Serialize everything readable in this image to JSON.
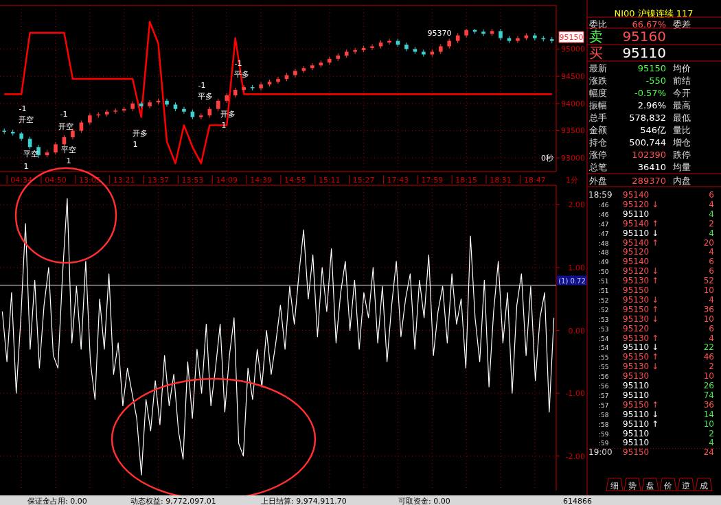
{
  "chart_data": [
    {
      "type": "candlestick",
      "categories": [
        null,
        null,
        "04:34",
        null,
        null,
        null,
        "04:50",
        null,
        null,
        null,
        "13:05",
        null,
        null,
        null,
        "13:21",
        null,
        null,
        null,
        "13:37",
        null,
        null,
        null,
        "13:53",
        null,
        null,
        null,
        "14:09",
        null,
        null,
        null,
        "14:39",
        null,
        null,
        null,
        "14:55",
        null,
        null,
        null,
        "15:11",
        null,
        null,
        null,
        "15:27",
        null,
        null,
        null,
        "17:43",
        null,
        null,
        null,
        "17:59",
        null,
        null,
        null,
        "18:15",
        null,
        null,
        null,
        "18:31",
        null,
        null,
        null,
        "18:47",
        null,
        null
      ],
      "ohlc": [
        [
          93500,
          93540,
          93440,
          93480
        ],
        [
          93480,
          93520,
          93410,
          93450
        ],
        [
          93450,
          93480,
          93310,
          93350
        ],
        [
          93350,
          93390,
          93160,
          93200
        ],
        [
          93200,
          93240,
          93000,
          93050
        ],
        [
          93050,
          93150,
          93010,
          93100
        ],
        [
          93100,
          93290,
          93060,
          93250
        ],
        [
          93250,
          93420,
          93210,
          93380
        ],
        [
          93380,
          93540,
          93340,
          93500
        ],
        [
          93500,
          93690,
          93460,
          93650
        ],
        [
          93650,
          93820,
          93610,
          93780
        ],
        [
          93780,
          93840,
          93740,
          93800
        ],
        [
          93800,
          93890,
          93760,
          93850
        ],
        [
          93850,
          93910,
          93810,
          93870
        ],
        [
          93870,
          93940,
          93830,
          93900
        ],
        [
          93900,
          94040,
          93860,
          94000
        ],
        [
          94000,
          94040,
          93910,
          93950
        ],
        [
          93950,
          94060,
          93910,
          94020
        ],
        [
          94020,
          94090,
          93980,
          94050
        ],
        [
          94050,
          94090,
          93940,
          93980
        ],
        [
          93980,
          94020,
          93860,
          93900
        ],
        [
          93900,
          93940,
          93810,
          93850
        ],
        [
          93850,
          93890,
          93710,
          93750
        ],
        [
          93750,
          93820,
          93710,
          93780
        ],
        [
          93780,
          93940,
          93740,
          93900
        ],
        [
          93900,
          94090,
          93860,
          94050
        ],
        [
          94050,
          94190,
          94010,
          94150
        ],
        [
          94150,
          94290,
          94110,
          94250
        ],
        [
          94250,
          94340,
          94210,
          94300
        ],
        [
          94300,
          94340,
          94240,
          94280
        ],
        [
          94280,
          94390,
          94240,
          94350
        ],
        [
          94350,
          94440,
          94310,
          94400
        ],
        [
          94400,
          94490,
          94360,
          94450
        ],
        [
          94450,
          94560,
          94410,
          94520
        ],
        [
          94520,
          94640,
          94480,
          94600
        ],
        [
          94600,
          94690,
          94560,
          94650
        ],
        [
          94650,
          94740,
          94610,
          94700
        ],
        [
          94700,
          94790,
          94660,
          94750
        ],
        [
          94750,
          94860,
          94710,
          94820
        ],
        [
          94820,
          94920,
          94780,
          94880
        ],
        [
          94880,
          94990,
          94840,
          94950
        ],
        [
          94950,
          95020,
          94910,
          94980
        ],
        [
          94980,
          95060,
          94940,
          95020
        ],
        [
          95020,
          95090,
          94980,
          95050
        ],
        [
          95050,
          95160,
          95010,
          95120
        ],
        [
          95120,
          95190,
          95080,
          95150
        ],
        [
          95150,
          95190,
          95040,
          95080
        ],
        [
          95080,
          95120,
          94960,
          95000
        ],
        [
          95000,
          95040,
          94910,
          94950
        ],
        [
          94950,
          94990,
          94860,
          94900
        ],
        [
          94900,
          94990,
          94860,
          94950
        ],
        [
          94950,
          95090,
          94910,
          95050
        ],
        [
          95050,
          95190,
          95010,
          95150
        ],
        [
          95150,
          95290,
          95110,
          95250
        ],
        [
          95250,
          95370,
          95210,
          95350
        ],
        [
          95350,
          95370,
          95280,
          95320
        ],
        [
          95320,
          95360,
          95240,
          95280
        ],
        [
          95280,
          95370,
          95240,
          95330
        ],
        [
          95330,
          95370,
          95160,
          95200
        ],
        [
          95200,
          95240,
          95110,
          95150
        ],
        [
          95150,
          95240,
          95110,
          95200
        ],
        [
          95200,
          95290,
          95160,
          95250
        ],
        [
          95250,
          95290,
          95160,
          95200
        ],
        [
          95200,
          95240,
          95140,
          95180
        ],
        [
          95180,
          95220,
          95110,
          95150
        ]
      ],
      "colors": [
        "#3cd2d2",
        "#3cd2d2",
        "#3cd2d2",
        "#3cd2d2",
        "#3cd2d2",
        "#ff4040",
        "#ff4040",
        "#ff4040",
        "#ff4040",
        "#ff4040",
        "#ff4040",
        "#ff4040",
        "#ff4040",
        "#ff4040",
        "#ff4040",
        "#ff4040",
        "#3cd2d2",
        "#ff4040",
        "#ff4040",
        "#3cd2d2",
        "#3cd2d2",
        "#3cd2d2",
        "#3cd2d2",
        "#ff4040",
        "#ff4040",
        "#ff4040",
        "#ff4040",
        "#ff4040",
        "#ff4040",
        "#3cd2d2",
        "#ff4040",
        "#ff4040",
        "#ff4040",
        "#ff4040",
        "#ff4040",
        "#ff4040",
        "#ff4040",
        "#ff4040",
        "#ff4040",
        "#ff4040",
        "#ff4040",
        "#ff4040",
        "#ff4040",
        "#ff4040",
        "#ff4040",
        "#ff4040",
        "#3cd2d2",
        "#3cd2d2",
        "#3cd2d2",
        "#3cd2d2",
        "#ff4040",
        "#ff4040",
        "#ff4040",
        "#ff4040",
        "#ff4040",
        "#3cd2d2",
        "#3cd2d2",
        "#ff4040",
        "#3cd2d2",
        "#3cd2d2",
        "#ff4040",
        "#ff4040",
        "#3cd2d2",
        "#3cd2d2",
        "#3cd2d2"
      ],
      "series": [
        {
          "type": "line",
          "color": "#ff0000",
          "values": [
            94170,
            94170,
            94170,
            95300,
            95300,
            95300,
            95300,
            95300,
            94450,
            94450,
            94450,
            94450,
            94450,
            94450,
            94450,
            94450,
            93750,
            95500,
            95100,
            93300,
            92900,
            93600,
            93200,
            92900,
            93600,
            93600,
            93600,
            95200,
            94170,
            94170,
            94170,
            94170,
            94170,
            94170,
            94170,
            94170,
            94170,
            94170,
            94170,
            94170,
            94170,
            94170,
            94170,
            94170,
            94170,
            94170,
            94170,
            94170,
            94170,
            94170,
            94170,
            94170,
            94170,
            94170,
            94170,
            94170,
            94170,
            94170,
            94170,
            94170,
            94170,
            94170,
            94170,
            94170,
            94170
          ]
        }
      ],
      "ylim": [
        92750,
        95800
      ],
      "yticks": [
        93000,
        93500,
        94000,
        94500,
        95000
      ],
      "grid": true,
      "annotations": [
        "-1",
        "开空",
        "平空",
        "1",
        "-1",
        "开空",
        "平空",
        "1",
        "开多",
        "1",
        "-1",
        "平多",
        "开多",
        "1",
        "-1",
        "平多",
        "95370",
        "0秒",
        "1分",
        "95150"
      ]
    },
    {
      "type": "line",
      "categories": [
        null,
        null,
        null,
        null,
        null,
        null,
        null,
        null,
        null,
        null,
        null,
        null,
        null,
        null,
        null,
        null,
        null,
        null,
        null,
        null,
        null,
        null,
        null,
        null,
        null,
        null,
        null,
        null,
        null,
        null,
        null,
        null,
        null,
        null,
        null,
        null,
        null,
        null,
        null,
        null,
        null,
        null,
        null,
        null,
        null,
        null,
        null,
        null,
        null,
        null,
        null,
        null,
        null,
        null,
        null,
        null,
        null,
        null,
        null,
        null,
        null,
        null,
        null,
        null,
        null,
        null,
        null,
        null,
        null,
        null,
        null,
        null,
        null,
        null,
        null,
        null,
        null,
        null,
        null,
        null,
        null,
        null,
        null,
        null,
        null,
        null,
        null,
        null,
        null,
        null,
        null,
        null,
        null,
        null,
        null,
        null,
        null,
        null,
        null,
        null,
        null,
        null,
        null,
        null,
        null,
        null,
        null,
        null,
        null,
        null,
        null,
        null,
        null,
        null,
        null,
        null,
        null,
        null,
        null,
        null
      ],
      "series": [
        {
          "color": "#ffffff",
          "values": [
            0.3,
            -0.5,
            0.6,
            -1.0,
            0.2,
            1.7,
            -0.3,
            0.8,
            -0.6,
            0.4,
            1.0,
            -0.4,
            -0.6,
            0.9,
            2.1,
            -0.2,
            0.7,
            -0.3,
            1.1,
            -0.5,
            -1.1,
            0.5,
            -0.3,
            0.9,
            -0.7,
            -0.2,
            -1.2,
            -0.6,
            -1.0,
            -1.4,
            -2.3,
            -1.1,
            -1.6,
            -0.8,
            -1.5,
            -0.4,
            -1.2,
            -0.7,
            -1.6,
            -2.05,
            -0.5,
            -1.4,
            -0.3,
            -1.0,
            0.1,
            -1.2,
            -0.6,
            0.1,
            -1.3,
            -0.4,
            0.2,
            -1.8,
            -2.0,
            -0.6,
            -1.1,
            -0.3,
            -0.9,
            0.0,
            -0.7,
            -0.2,
            0.4,
            -0.3,
            0.7,
            0.1,
            0.9,
            1.6,
            0.5,
            1.2,
            -0.1,
            1.0,
            0.3,
            1.3,
            -0.2,
            0.6,
            1.1,
            0.0,
            0.8,
            -0.3,
            0.6,
            0.2,
            1.0,
            -0.2,
            0.7,
            -0.5,
            0.4,
            1.1,
            -0.1,
            0.5,
            0.9,
            -0.3,
            0.8,
            0.2,
            1.2,
            -0.4,
            0.3,
            0.7,
            -0.2,
            0.9,
            0.1,
            0.5,
            -0.6,
            1.5,
            0.2,
            -0.5,
            0.8,
            -0.9,
            0.3,
            1.1,
            -0.2,
            0.6,
            -1.0,
            0.4,
            0.9,
            -0.4,
            0.7,
            -0.8,
            0.2,
            0.6,
            -1.3,
            0.2
          ]
        }
      ],
      "ylim": [
        -2.55,
        2.31
      ],
      "yticks": [
        {
          "value": -2,
          "label": "-2.00"
        },
        {
          "value": -1,
          "label": "-1.00"
        },
        {
          "value": 0,
          "label": "0.00"
        },
        {
          "value": 1,
          "label": "1.00"
        },
        {
          "value": 2,
          "label": "2.00"
        }
      ],
      "grid": true,
      "ref_lines": [
        {
          "axis": "y",
          "value": 0.72,
          "label": "(1) 0.72",
          "color": "#ffffff"
        }
      ]
    },
    {
      "type": "other",
      "title": "NI00 沪镍连续 117",
      "categories": [
        "委比",
        "卖",
        "买",
        "最新",
        "涨跌",
        "幅度",
        "振幅",
        "总手",
        "金额",
        "持仓",
        "涨停",
        "总笔",
        "外盘"
      ],
      "value_labels": [
        "66.67%",
        "95160",
        "95110",
        "95150",
        "-550",
        "-0.57%",
        "2.96%",
        "578,832",
        "546亿",
        "500,744",
        "102390",
        "36410",
        "289370"
      ],
      "colors": [
        "#ff5050",
        "#ff5050",
        "#ffffff",
        "#50ff50",
        "#50ff50",
        "#50ff50",
        "#ffffff",
        "#ffffff",
        "#ffffff",
        "#ffffff",
        "#ff5050",
        "#ffffff",
        "#ff5050"
      ],
      "annotations": [
        "委差",
        "均价",
        "前结",
        "今开",
        "最高",
        "最低",
        "量比",
        "增仓",
        "跌停",
        "均量",
        "内盘"
      ]
    },
    {
      "type": "other",
      "categories": [
        "18:59",
        ":46",
        ":46",
        ":47",
        ":47",
        ":48",
        ":48",
        ":49",
        ":50",
        ":51",
        ":51",
        ":52",
        ":52",
        ":53",
        ":53",
        ":54",
        ":54",
        ":55",
        ":55",
        ":56",
        ":56",
        ":57",
        ":57",
        ":58",
        ":58",
        ":59",
        ":59",
        "19:00"
      ],
      "values": [
        6,
        4,
        4,
        2,
        4,
        20,
        4,
        6,
        6,
        52,
        10,
        4,
        36,
        10,
        6,
        4,
        22,
        46,
        2,
        10,
        26,
        74,
        36,
        14,
        10,
        2,
        4,
        24
      ],
      "data_labels": true,
      "colors": [
        "#ff5050",
        "#ff5050",
        "#ffffff",
        "#ff5050",
        "#ffffff",
        "#ff5050",
        "#ff5050",
        "#ff5050",
        "#ff5050",
        "#ff5050",
        "#ff5050",
        "#ff5050",
        "#ff5050",
        "#ff5050",
        "#ff5050",
        "#ff5050",
        "#ffffff",
        "#ff5050",
        "#ff5050",
        "#ff5050",
        "#ffffff",
        "#ffffff",
        "#ff5050",
        "#ffffff",
        "#ffffff",
        "#ffffff",
        "#ffffff",
        "#ff5050"
      ],
      "annotations": [
        "95140",
        "95120 ↓",
        "95110",
        "95140 ↑",
        "95110 ↓",
        "95140 ↑",
        "95120",
        "95140",
        "95120 ↓",
        "95130 ↑",
        "95150",
        "95130 ↓",
        "95150 ↑",
        "95130 ↓",
        "95120",
        "95130 ↑",
        "95110 ↓",
        "95150 ↑",
        "95130 ↓",
        "95130",
        "95110",
        "95110",
        "95150 ↑",
        "95110 ↓",
        "95110 ↑",
        "95110",
        "95110",
        "95150",
        "细",
        "势",
        "盘",
        "价",
        "逆",
        "成",
        "保证金占用: 0.00",
        "动态权益: 9,772,097.01",
        "上日结算: 9,974,911.70",
        "可取资金: 0.00",
        "614866"
      ]
    }
  ]
}
